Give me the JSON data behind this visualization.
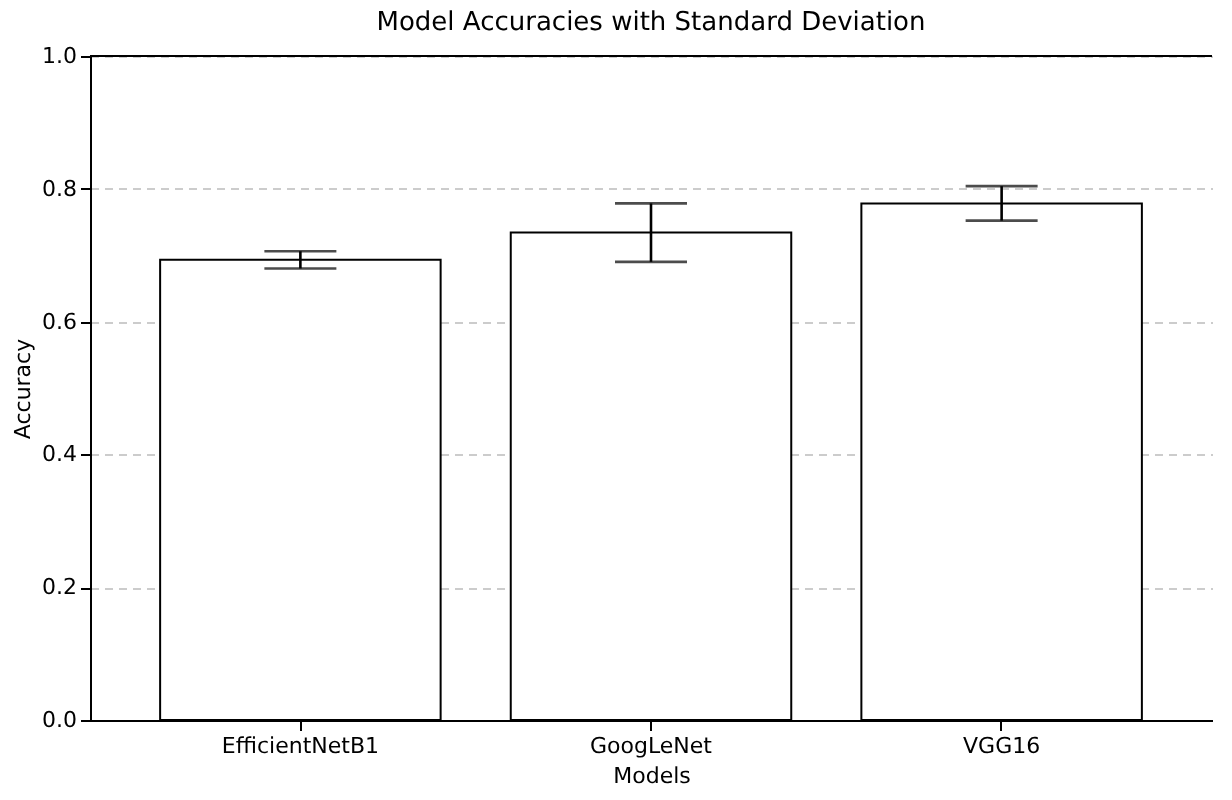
{
  "chart_data": {
    "type": "bar",
    "title": "Model Accuracies with Standard Deviation",
    "xlabel": "Models",
    "ylabel": "Accuracy",
    "categories": [
      "EfficientNetB1",
      "GoogLeNet",
      "VGG16"
    ],
    "values": [
      0.693,
      0.734,
      0.778
    ],
    "errors": [
      0.013,
      0.044,
      0.026
    ],
    "color": "#ffffff",
    "ylim": [
      0,
      1.0
    ],
    "yticks": [
      {
        "value": 0,
        "label": "0.0"
      },
      0.2,
      0.4,
      0.6,
      0.8,
      {
        "value": 1,
        "label": "1.0"
      }
    ],
    "grid": "y"
  }
}
